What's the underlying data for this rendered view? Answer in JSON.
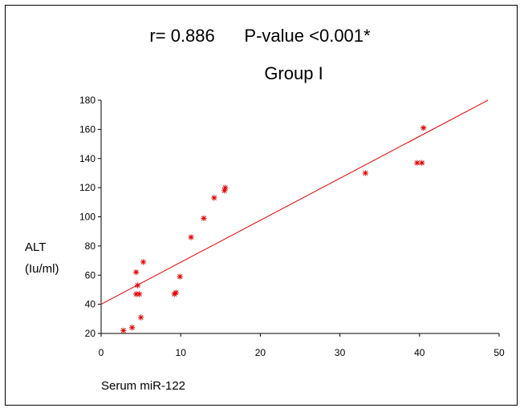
{
  "chart_data": {
    "type": "scatter",
    "title": "r= 0.886      P-value <0.001*",
    "subtitle": "Group I",
    "xlabel": "Serum miR-122",
    "ylabel": [
      "ALT",
      "(Iu/ml)"
    ],
    "xlim": [
      0,
      50
    ],
    "ylim": [
      20,
      180
    ],
    "xticks": [
      0,
      10,
      20,
      30,
      40,
      50
    ],
    "yticks": [
      20,
      40,
      60,
      80,
      100,
      120,
      140,
      160,
      180
    ],
    "grid": false,
    "legend": "none",
    "marker": "asterisk",
    "marker_color": "#e00000",
    "line_color": "#e00000",
    "series": [
      {
        "x": [
          2.8,
          3.9,
          5.0,
          4.4,
          4.8,
          4.6,
          4.4,
          5.3,
          9.2,
          9.4,
          9.9,
          11.3,
          12.9,
          14.2,
          15.5,
          15.6,
          33.2,
          39.7,
          40.3,
          40.5
        ],
        "y": [
          22,
          24,
          31,
          47,
          47,
          53,
          62,
          69,
          47,
          48,
          59,
          86,
          99,
          113,
          118,
          120,
          130,
          137,
          137,
          161
        ]
      }
    ],
    "trendline": {
      "x": [
        0,
        48.6
      ],
      "y": [
        40,
        180
      ]
    }
  }
}
